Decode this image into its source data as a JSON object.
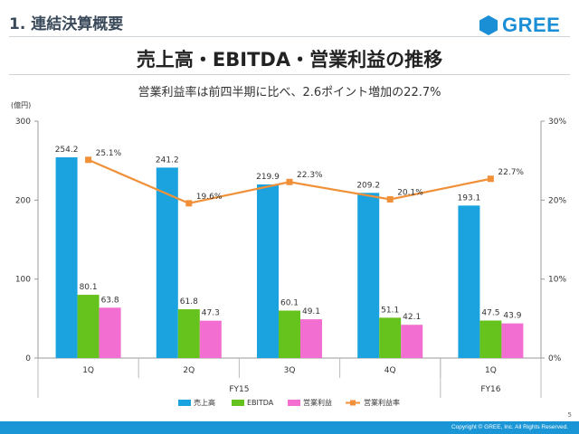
{
  "header": {
    "section_title": "1. 連結決算概要",
    "logo_text": "GREE",
    "logo_icon": "hexagon-logo-icon"
  },
  "slide": {
    "title": "売上高・EBITDA・営業利益の推移",
    "subtitle": "営業利益率は前四半期に比べ、2.6ポイント増加の22.7%"
  },
  "footer": {
    "copyright": "Copyright © GREE, Inc. All Rights Reserved.",
    "page_number": "5"
  },
  "colors": {
    "revenue": "#1aa3de",
    "ebitda": "#66c21c",
    "operating_income": "#f26ed0",
    "margin_line": "#f0913a",
    "brand": "#1a8fd6"
  },
  "chart_data": {
    "type": "bar",
    "unit_label": "(億円)",
    "categories": [
      "1Q",
      "2Q",
      "3Q",
      "4Q",
      "1Q"
    ],
    "groups": [
      {
        "label": "FY15",
        "categories": [
          "1Q",
          "2Q",
          "3Q",
          "4Q"
        ]
      },
      {
        "label": "FY16",
        "categories": [
          "1Q"
        ]
      }
    ],
    "series": [
      {
        "name": "売上高",
        "type": "bar",
        "axis": "left",
        "values": [
          254.2,
          241.2,
          219.9,
          209.2,
          193.1
        ],
        "labels": [
          "254.2",
          "241.2",
          "219.9",
          "209.2",
          "193.1"
        ]
      },
      {
        "name": "EBITDA",
        "type": "bar",
        "axis": "left",
        "values": [
          80.1,
          61.8,
          60.1,
          51.1,
          47.5
        ],
        "labels": [
          "80.1",
          "61.8",
          "60.1",
          "51.1",
          "47.5"
        ]
      },
      {
        "name": "営業利益",
        "type": "bar",
        "axis": "left",
        "values": [
          63.8,
          47.3,
          49.1,
          42.1,
          43.9
        ],
        "labels": [
          "63.8",
          "47.3",
          "49.1",
          "42.1",
          "43.9"
        ]
      },
      {
        "name": "営業利益率",
        "type": "line",
        "axis": "right",
        "values": [
          25.1,
          19.6,
          22.3,
          20.1,
          22.7
        ],
        "labels": [
          "25.1%",
          "19.6%",
          "22.3%",
          "20.1%",
          "22.7%"
        ]
      }
    ],
    "ylim": [
      0,
      300
    ],
    "yticks": [
      "0",
      "100",
      "200",
      "300"
    ],
    "y2lim": [
      0,
      30
    ],
    "y2ticks": [
      "0%",
      "10%",
      "20%",
      "30%"
    ],
    "legend_position": "bottom-center"
  }
}
